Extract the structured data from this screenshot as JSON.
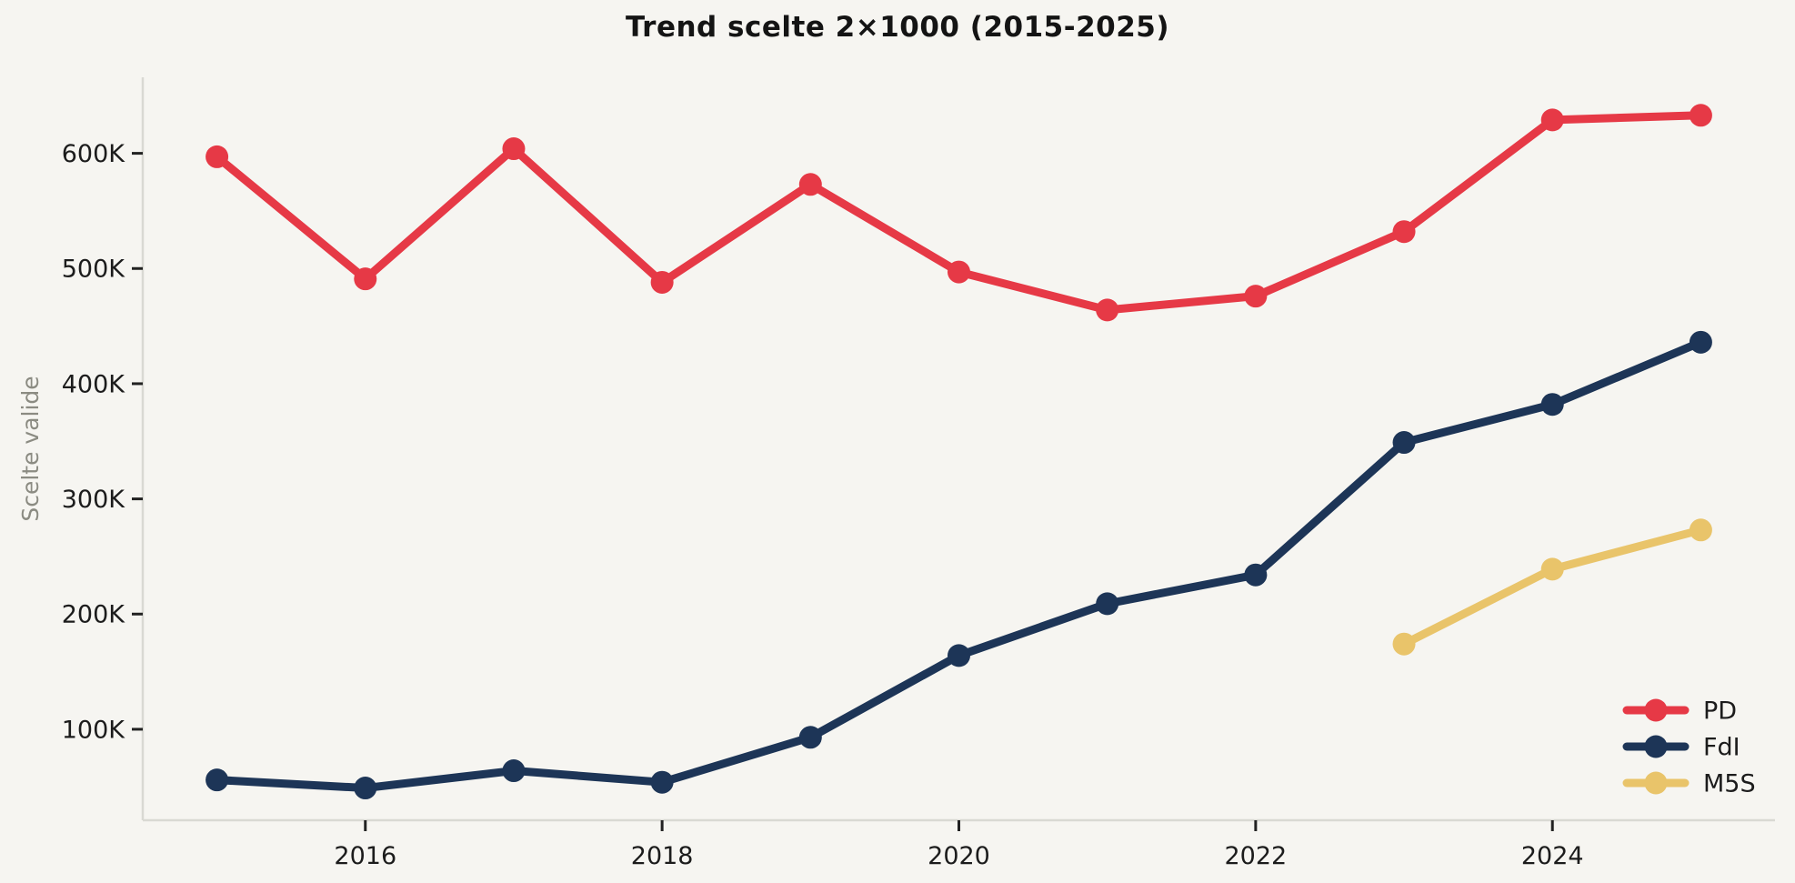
{
  "title": "Trend scelte 2×1000 (2015-2025)",
  "colors": {
    "background": "#f6f5f1",
    "axis_line": "#d9d9d3",
    "tick_mark": "#222222",
    "tick_text": "#1c1c1c",
    "axis_label_text": "#8b8b82",
    "title_text": "#141414",
    "pd": "#e63946",
    "fdi": "#1d3557",
    "m5s": "#e9c46a"
  },
  "chart_data": {
    "type": "line",
    "title": "Trend scelte 2×1000 (2015-2025)",
    "xlabel": "",
    "ylabel": "Scelte valide",
    "x": [
      2015,
      2016,
      2017,
      2018,
      2019,
      2020,
      2021,
      2022,
      2023,
      2024,
      2025
    ],
    "x_tick_values": [
      2016,
      2018,
      2020,
      2022,
      2024
    ],
    "x_tick_labels": [
      "2016",
      "2018",
      "2020",
      "2022",
      "2024"
    ],
    "y_tick_values": [
      100000,
      200000,
      300000,
      400000,
      500000,
      600000
    ],
    "y_tick_labels": [
      "100K",
      "200K",
      "300K",
      "400K",
      "500K",
      "600K"
    ],
    "xlim": [
      2014.5,
      2025.5
    ],
    "ylim": [
      21000,
      666000
    ],
    "grid": false,
    "legend_position": "lower right",
    "series": [
      {
        "name": "PD",
        "color": "#e63946",
        "values": [
          597000,
          491000,
          604000,
          488000,
          573000,
          497000,
          464000,
          476000,
          532000,
          629000,
          633000
        ]
      },
      {
        "name": "FdI",
        "color": "#1d3557",
        "values": [
          56000,
          49000,
          64000,
          54000,
          93000,
          164000,
          209000,
          234000,
          349000,
          382000,
          436000
        ]
      },
      {
        "name": "M5S",
        "color": "#e9c46a",
        "values": [
          null,
          null,
          null,
          null,
          null,
          null,
          null,
          null,
          174000,
          239000,
          273000
        ]
      }
    ]
  }
}
